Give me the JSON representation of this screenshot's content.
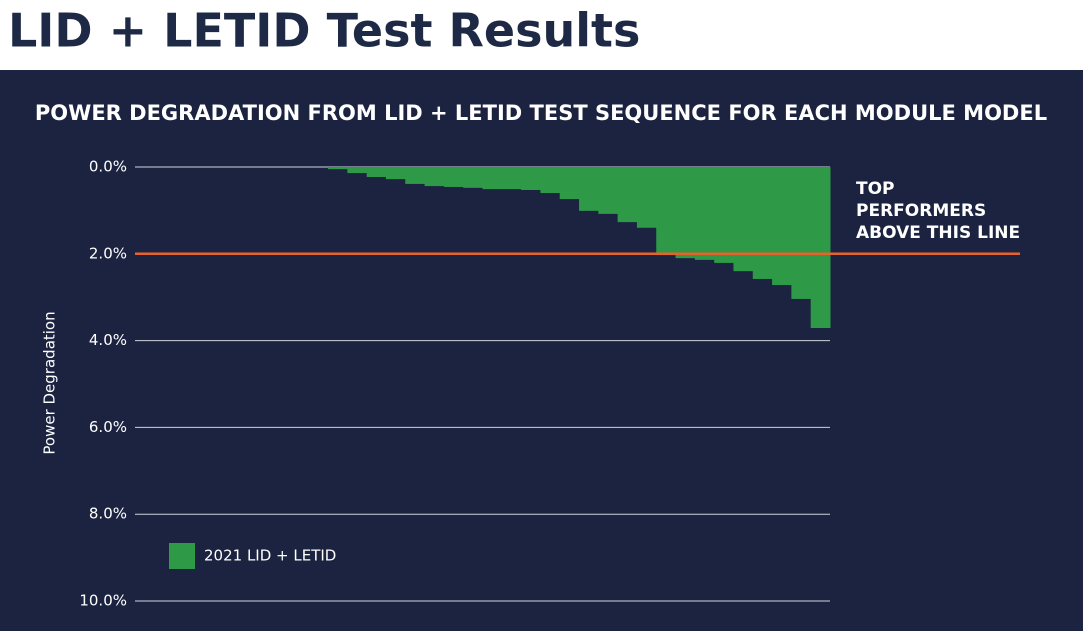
{
  "slide_title": "LID + LETID Test Results",
  "chart_data": {
    "type": "bar",
    "title": "POWER DEGRADATION FROM LID + LETID TEST SEQUENCE FOR EACH MODULE MODEL",
    "y_label": "Power Degradation",
    "series": [
      {
        "name": "2021 LID + LETID",
        "color": "#2e9a48",
        "values": [
          0,
          0,
          0,
          0,
          0,
          0,
          0,
          0,
          0,
          0,
          0.05,
          0.14,
          0.23,
          0.28,
          0.39,
          0.44,
          0.46,
          0.48,
          0.51,
          0.51,
          0.53,
          0.6,
          0.74,
          1.01,
          1.08,
          1.27,
          1.4,
          2.03,
          2.1,
          2.14,
          2.21,
          2.4,
          2.58,
          2.72,
          3.04,
          3.71
        ]
      }
    ],
    "ylim": [
      0,
      10
    ],
    "y_inverted": true,
    "yticks": [
      {
        "value": 0,
        "label": "0.0%"
      },
      {
        "value": 2,
        "label": "2.0%"
      },
      {
        "value": 4,
        "label": "4.0%"
      },
      {
        "value": 6,
        "label": "6.0%"
      },
      {
        "value": 8,
        "label": "8.0%"
      },
      {
        "value": 10,
        "label": "10.0%"
      }
    ],
    "grid": true,
    "reference_line": {
      "value": 2,
      "color": "#e8632b",
      "annotation": [
        "TOP",
        "PERFORMERS",
        "ABOVE THIS LINE"
      ]
    },
    "legend": "lower-left"
  }
}
